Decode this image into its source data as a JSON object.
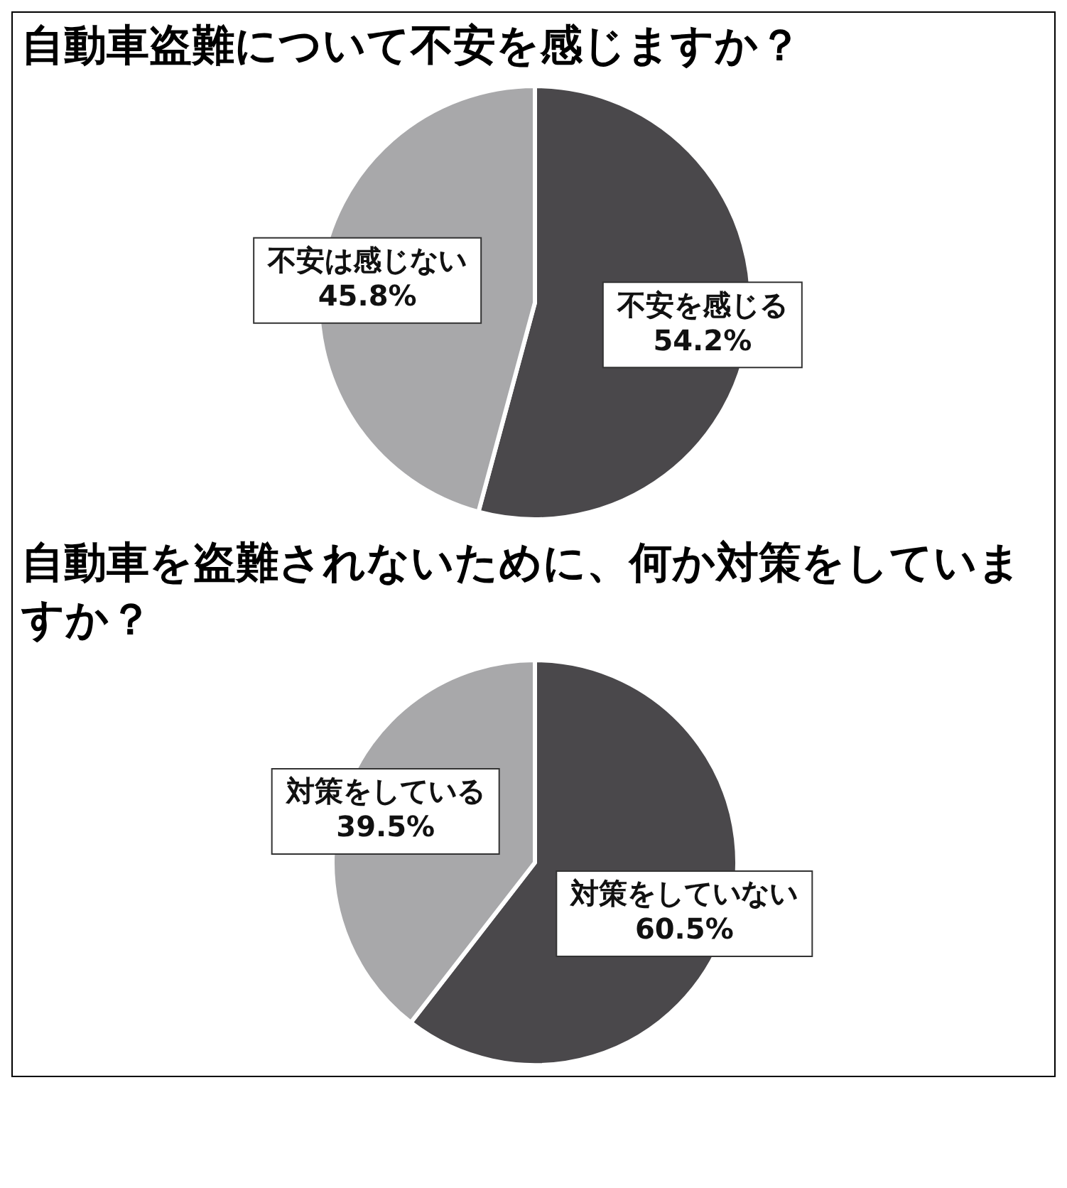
{
  "chart_data": [
    {
      "type": "pie",
      "title": "自動車盗難について不安を感じますか？",
      "categories": [
        "不安を感じる",
        "不安は感じない"
      ],
      "values": [
        54.2,
        45.8
      ],
      "value_labels": [
        "54.2%",
        "45.8%"
      ],
      "colors": [
        "#4a484b",
        "#a8a8aa"
      ],
      "legend": false
    },
    {
      "type": "pie",
      "title": "自動車を盗難されないために、何か対策をしていますか？",
      "categories": [
        "対策をしていない",
        "対策をしている"
      ],
      "values": [
        60.5,
        39.5
      ],
      "value_labels": [
        "60.5%",
        "39.5%"
      ],
      "colors": [
        "#4a484b",
        "#a8a8aa"
      ],
      "legend": false
    }
  ]
}
